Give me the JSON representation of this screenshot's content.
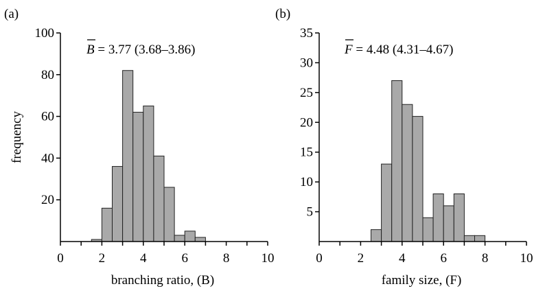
{
  "chart_data": [
    {
      "type": "bar",
      "panel_label": "(a)",
      "annotation": {
        "symbol": "B",
        "text": " = 3.77 (3.68–3.86)"
      },
      "xlabel": "branching ratio, (B)",
      "ylabel": "frequency",
      "xlim": [
        0,
        10
      ],
      "ylim": [
        0,
        100
      ],
      "xticks": [
        0,
        2,
        4,
        6,
        8,
        10
      ],
      "yticks": [
        20,
        40,
        60,
        80,
        100
      ],
      "bin_width": 0.5,
      "bin_starts": [
        1.5,
        2,
        2.5,
        3,
        3.5,
        4,
        4.5,
        5,
        5.5,
        6,
        6.5,
        7
      ],
      "values": [
        1,
        16,
        36,
        82,
        62,
        65,
        41,
        26,
        3,
        5,
        2,
        0
      ],
      "bar_color": "#a9a9a9"
    },
    {
      "type": "bar",
      "panel_label": "(b)",
      "annotation": {
        "symbol": "F",
        "text": " = 4.48 (4.31–4.67)"
      },
      "xlabel": "family size, (F)",
      "ylabel": "",
      "xlim": [
        0,
        10
      ],
      "ylim": [
        0,
        35
      ],
      "xticks": [
        0,
        2,
        4,
        6,
        8,
        10
      ],
      "yticks": [
        5,
        10,
        15,
        20,
        25,
        30,
        35
      ],
      "bin_width": 0.5,
      "bin_starts": [
        2.5,
        3,
        3.5,
        4,
        4.5,
        5,
        5.5,
        6,
        6.5,
        7,
        7.5
      ],
      "values": [
        2,
        13,
        27,
        23,
        21,
        4,
        8,
        6,
        8,
        1,
        1
      ],
      "bar_color": "#a9a9a9"
    }
  ]
}
